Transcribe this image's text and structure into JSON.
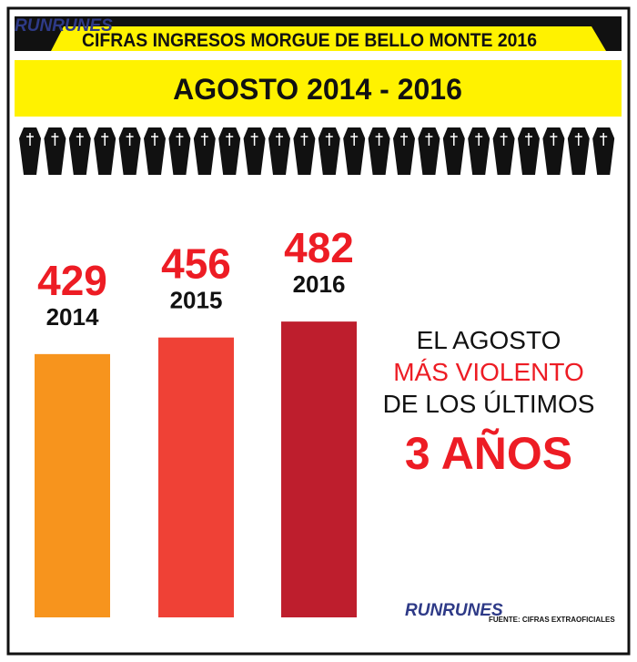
{
  "brand": "RUNRUNES",
  "chart_data": {
    "type": "bar",
    "title": "CIFRAS INGRESOS MORGUE DE BELLO MONTE 2016",
    "subtitle": "AGOSTO 2014 - 2016",
    "categories": [
      "2014",
      "2015",
      "2016"
    ],
    "values": [
      429,
      456,
      482
    ],
    "colors": [
      "#f7941d",
      "#ef4136",
      "#be1e2d"
    ],
    "ylim": [
      0,
      500
    ],
    "annotation": [
      "EL AGOSTO",
      "MÁS VIOLENTO",
      "DE LOS ÚLTIMOS",
      "3 AÑOS"
    ],
    "source": "FUENTE: CIFRAS EXTRAOFICIALES"
  }
}
